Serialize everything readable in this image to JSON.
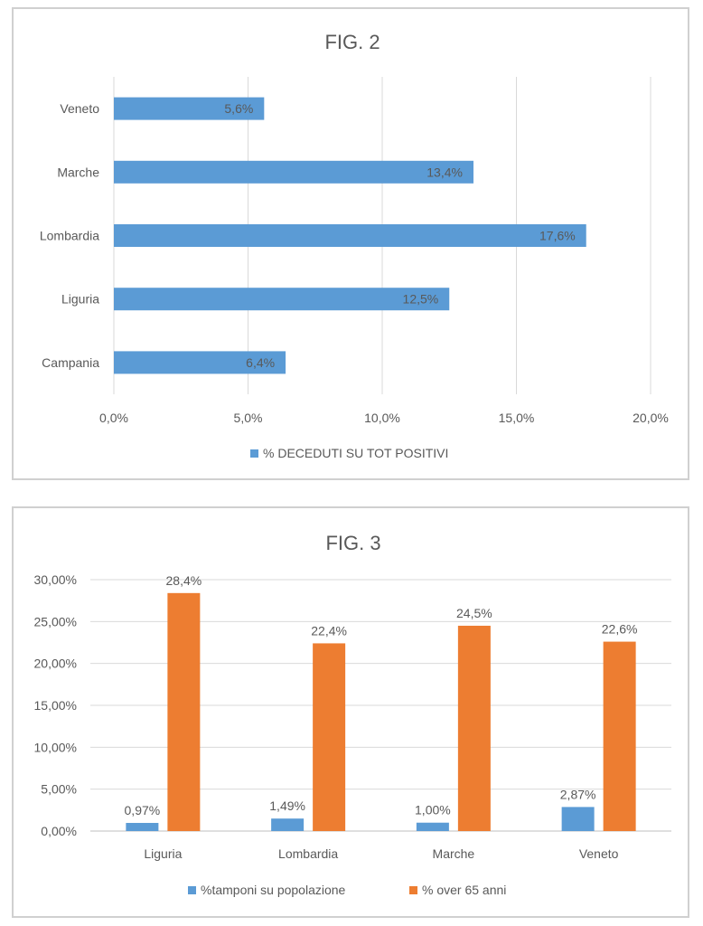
{
  "chart_data": [
    {
      "type": "bar",
      "orientation": "horizontal",
      "title": "FIG. 2",
      "categories": [
        "Campania",
        "Liguria",
        "Lombardia",
        "Marche",
        "Veneto"
      ],
      "series": [
        {
          "name": "% DECEDUTI SU TOT POSITIVI",
          "color": "#5b9bd5",
          "values": [
            6.4,
            12.5,
            17.6,
            13.4,
            5.6
          ],
          "labels": [
            "6,4%",
            "12,5%",
            "17,6%",
            "13,4%",
            "5,6%"
          ]
        }
      ],
      "xlim": [
        0,
        20
      ],
      "x_ticks": [
        "0,0%",
        "5,0%",
        "10,0%",
        "15,0%",
        "20,0%"
      ],
      "grid": true,
      "legend": "bottom"
    },
    {
      "type": "bar",
      "title": "FIG. 3",
      "categories": [
        "Liguria",
        "Lombardia",
        "Marche",
        "Veneto"
      ],
      "series": [
        {
          "name": "%tamponi su popolazione",
          "color": "#5b9bd5",
          "values": [
            0.97,
            1.49,
            1.0,
            2.87
          ],
          "labels": [
            "0,97%",
            "1,49%",
            "1,00%",
            "2,87%"
          ]
        },
        {
          "name": "% over 65 anni",
          "color": "#ed7d31",
          "values": [
            28.4,
            22.4,
            24.5,
            22.6
          ],
          "labels": [
            "28,4%",
            "22,4%",
            "24,5%",
            "22,6%"
          ]
        }
      ],
      "ylim": [
        0,
        30
      ],
      "y_ticks": [
        "0,00%",
        "5,00%",
        "10,00%",
        "15,00%",
        "20,00%",
        "25,00%",
        "30,00%"
      ],
      "grid": true,
      "legend": "bottom"
    }
  ]
}
